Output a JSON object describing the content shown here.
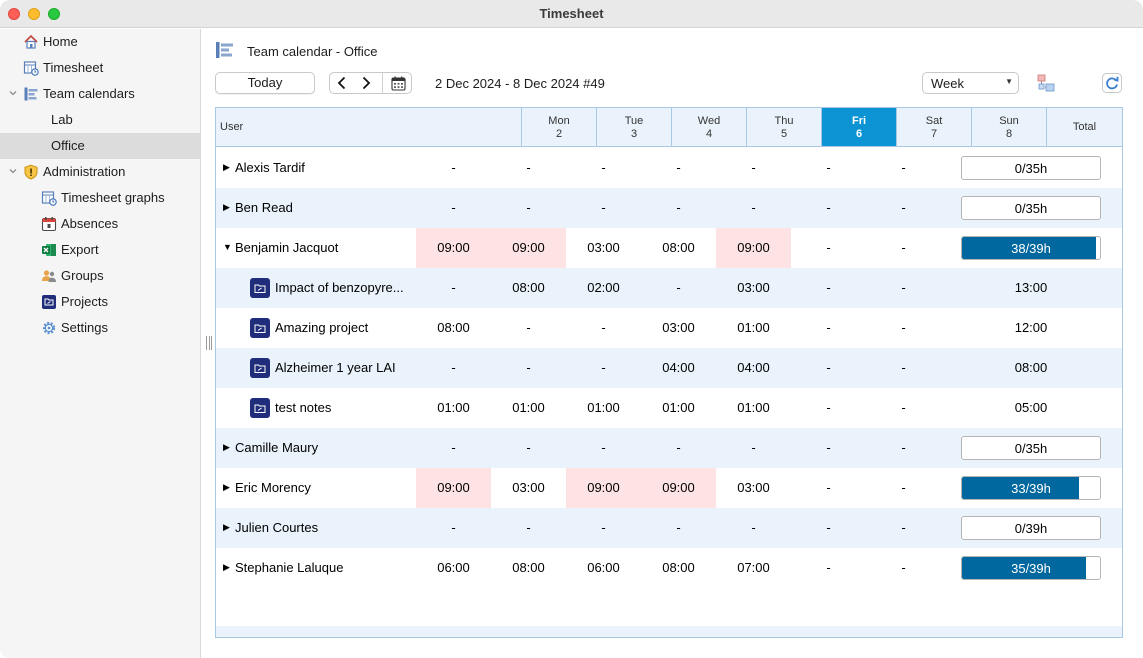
{
  "window": {
    "title": "Timesheet"
  },
  "sidebar": {
    "items": [
      {
        "label": "Home",
        "icon": "home-icon"
      },
      {
        "label": "Timesheet",
        "icon": "timesheet-icon"
      },
      {
        "label": "Team calendars",
        "icon": "team-calendars-icon",
        "expanded": true
      },
      {
        "label": "Lab"
      },
      {
        "label": "Office",
        "selected": true
      },
      {
        "label": "Administration",
        "icon": "administration-shield-icon",
        "expanded": true
      },
      {
        "label": "Timesheet graphs",
        "icon": "graphs-icon"
      },
      {
        "label": "Absences",
        "icon": "absences-calendar-icon"
      },
      {
        "label": "Export",
        "icon": "excel-export-icon"
      },
      {
        "label": "Groups",
        "icon": "groups-icon"
      },
      {
        "label": "Projects",
        "icon": "projects-icon"
      },
      {
        "label": "Settings",
        "icon": "settings-gear-icon"
      }
    ]
  },
  "header": {
    "title": "Team calendar - Office",
    "today_label": "Today",
    "range": "2 Dec 2024 - 8 Dec 2024 #49",
    "view_select": "Week"
  },
  "grid": {
    "user_header": "User",
    "total_header": "Total",
    "days": [
      {
        "dow": "Mon",
        "date": "2"
      },
      {
        "dow": "Tue",
        "date": "3"
      },
      {
        "dow": "Wed",
        "date": "4"
      },
      {
        "dow": "Thu",
        "date": "5"
      },
      {
        "dow": "Fri",
        "date": "6",
        "today": true
      },
      {
        "dow": "Sat",
        "date": "7"
      },
      {
        "dow": "Sun",
        "date": "8"
      }
    ],
    "rows": [
      {
        "type": "user",
        "name": "Alexis Tardif",
        "expanded": false,
        "cells": [
          "-",
          "-",
          "-",
          "-",
          "-",
          "-",
          "-"
        ],
        "highlight": [],
        "total": "0/35h",
        "fill": 0
      },
      {
        "type": "user",
        "name": "Ben Read",
        "expanded": false,
        "cells": [
          "-",
          "-",
          "-",
          "-",
          "-",
          "-",
          "-"
        ],
        "highlight": [],
        "total": "0/35h",
        "fill": 0
      },
      {
        "type": "user",
        "name": "Benjamin Jacquot",
        "expanded": true,
        "cells": [
          "09:00",
          "09:00",
          "03:00",
          "08:00",
          "09:00",
          "-",
          "-"
        ],
        "highlight": [
          0,
          1,
          4
        ],
        "total": "38/39h",
        "fill": 0.974
      },
      {
        "type": "project",
        "name": "Impact of benzopyre...",
        "cells": [
          "-",
          "08:00",
          "02:00",
          "-",
          "03:00",
          "-",
          "-"
        ],
        "total": "13:00"
      },
      {
        "type": "project",
        "name": "Amazing project",
        "cells": [
          "08:00",
          "-",
          "-",
          "03:00",
          "01:00",
          "-",
          "-"
        ],
        "total": "12:00"
      },
      {
        "type": "project",
        "name": "Alzheimer 1 year LAI",
        "cells": [
          "-",
          "-",
          "-",
          "04:00",
          "04:00",
          "-",
          "-"
        ],
        "total": "08:00"
      },
      {
        "type": "project",
        "name": "test notes",
        "cells": [
          "01:00",
          "01:00",
          "01:00",
          "01:00",
          "01:00",
          "-",
          "-"
        ],
        "total": "05:00"
      },
      {
        "type": "user",
        "name": "Camille Maury",
        "expanded": false,
        "cells": [
          "-",
          "-",
          "-",
          "-",
          "-",
          "-",
          "-"
        ],
        "highlight": [],
        "total": "0/35h",
        "fill": 0
      },
      {
        "type": "user",
        "name": "Eric Morency",
        "expanded": false,
        "cells": [
          "09:00",
          "03:00",
          "09:00",
          "09:00",
          "03:00",
          "-",
          "-"
        ],
        "highlight": [
          0,
          2,
          3
        ],
        "total": "33/39h",
        "fill": 0.846
      },
      {
        "type": "user",
        "name": "Julien Courtes",
        "expanded": false,
        "cells": [
          "-",
          "-",
          "-",
          "-",
          "-",
          "-",
          "-"
        ],
        "highlight": [],
        "total": "0/39h",
        "fill": 0
      },
      {
        "type": "user",
        "name": "Stephanie Laluque",
        "expanded": false,
        "cells": [
          "06:00",
          "08:00",
          "06:00",
          "08:00",
          "07:00",
          "-",
          "-"
        ],
        "highlight": [],
        "total": "35/39h",
        "fill": 0.897
      }
    ]
  },
  "colors": {
    "accent": "#0b93d3",
    "bar": "#00689e",
    "highlight": "#fde3e3",
    "row_alt": "#eaf3fb",
    "project_icon": "#1f2d7a"
  }
}
